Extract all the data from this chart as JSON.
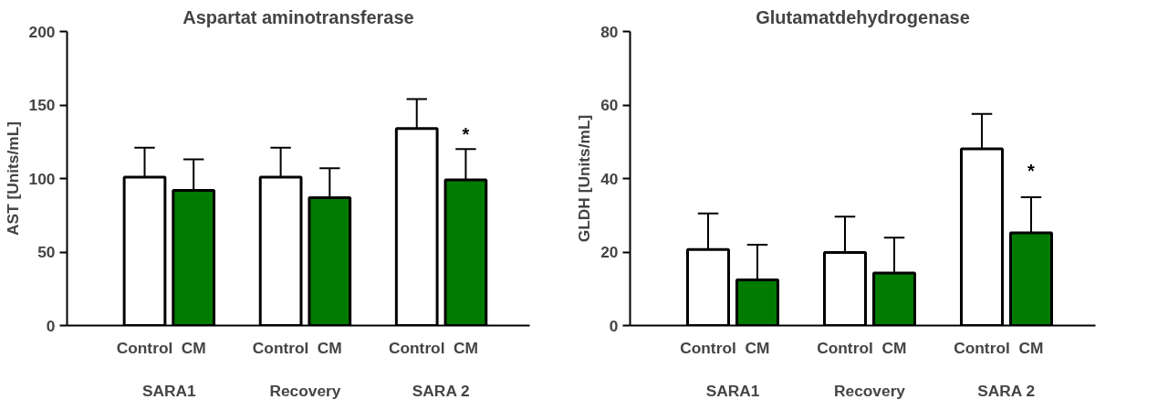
{
  "chart_data": [
    {
      "type": "bar",
      "title": "Aspartat aminotransferase",
      "ylabel": "AST [Units/mL]",
      "categories": [
        "SARA1",
        "Recovery",
        "SARA 2"
      ],
      "series": [
        {
          "name": "Control",
          "color": "#ffffff",
          "values": [
            101,
            101,
            134
          ],
          "errors": [
            [
              101,
              121
            ],
            [
              101,
              121
            ],
            [
              134,
              154
            ]
          ]
        },
        {
          "name": "CM",
          "color": "#007a00",
          "values": [
            92,
            87,
            99
          ],
          "errors": [
            [
              92,
              113
            ],
            [
              87,
              107
            ],
            [
              99,
              120
            ]
          ]
        }
      ],
      "ylim": [
        0,
        200
      ],
      "yticks": [
        0,
        50,
        100,
        150,
        200
      ],
      "grid": false,
      "legend": false,
      "annotations": [
        {
          "text": "*",
          "x": "SARA 2",
          "y": 130
        }
      ]
    },
    {
      "type": "bar",
      "title": "Glutamatdehydrogenase",
      "ylabel": "GLDH [Units/mL]",
      "categories": [
        "SARA1",
        "Recovery",
        "SARA 2"
      ],
      "series": [
        {
          "name": "Control",
          "color": "#ffffff",
          "values": [
            20.7,
            19.9,
            48.1
          ],
          "errors": [
            [
              20.7,
              30.5
            ],
            [
              19.9,
              29.6
            ],
            [
              48.1,
              57.6
            ]
          ]
        },
        {
          "name": "CM",
          "color": "#007a00",
          "values": [
            12.4,
            14.3,
            25.2
          ],
          "errors": [
            [
              12.4,
              22.0
            ],
            [
              14.3,
              23.9
            ],
            [
              25.2,
              34.9
            ]
          ]
        }
      ],
      "ylim": [
        0,
        80
      ],
      "yticks": [
        0,
        20,
        40,
        60,
        80
      ],
      "grid": false,
      "legend": false,
      "annotations": [
        {
          "text": "*",
          "x": "SARA 2",
          "y": 42
        }
      ]
    }
  ]
}
